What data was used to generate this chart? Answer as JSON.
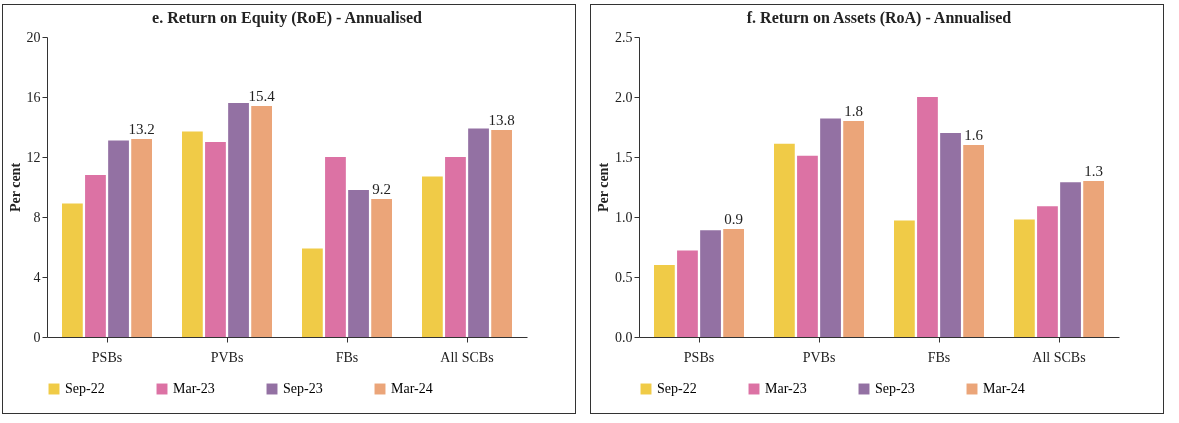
{
  "chart_data": [
    {
      "type": "bar",
      "title": "e. Return on Equity (RoE) - Annualised",
      "ylabel": "Per cent",
      "categories": [
        "PSBs",
        "PVBs",
        "FBs",
        "All SCBs"
      ],
      "ylim": [
        0,
        20
      ],
      "yticks": [
        0,
        4,
        8,
        12,
        16,
        20
      ],
      "grid": false,
      "legend": "bottom",
      "series": [
        {
          "name": "Sep-22",
          "color": "#f0cb47",
          "values": [
            8.9,
            13.7,
            5.9,
            10.7
          ]
        },
        {
          "name": "Mar-23",
          "color": "#dc72a4",
          "values": [
            10.8,
            13.0,
            12.0,
            12.0
          ]
        },
        {
          "name": "Sep-23",
          "color": "#9371a3",
          "values": [
            13.1,
            15.6,
            9.8,
            13.9
          ]
        },
        {
          "name": "Mar-24",
          "color": "#eba579",
          "values": [
            13.2,
            15.4,
            9.2,
            13.8
          ],
          "value_labels": [
            "13.2",
            "15.4",
            "9.2",
            "13.8"
          ]
        }
      ]
    },
    {
      "type": "bar",
      "title": "f. Return on Assets (RoA) - Annualised",
      "ylabel": "Per cent",
      "categories": [
        "PSBs",
        "PVBs",
        "FBs",
        "All SCBs"
      ],
      "ylim": [
        0,
        2.5
      ],
      "yticks": [
        {
          "value": 0,
          "label": "0.0"
        },
        0.5,
        {
          "value": 1,
          "label": "1.0"
        },
        1.5,
        {
          "value": 2,
          "label": "2.0"
        },
        2.5
      ],
      "grid": false,
      "legend": "bottom",
      "series": [
        {
          "name": "Sep-22",
          "color": "#f0cb47",
          "values": [
            0.6,
            1.61,
            0.97,
            0.98
          ]
        },
        {
          "name": "Mar-23",
          "color": "#dc72a4",
          "values": [
            0.72,
            1.51,
            2.0,
            1.09
          ]
        },
        {
          "name": "Sep-23",
          "color": "#9371a3",
          "values": [
            0.89,
            1.82,
            1.7,
            1.29
          ]
        },
        {
          "name": "Mar-24",
          "color": "#eba579",
          "values": [
            0.9,
            1.8,
            1.6,
            1.3
          ],
          "value_labels": [
            "0.9",
            "1.8",
            "1.6",
            "1.3"
          ]
        }
      ]
    }
  ]
}
